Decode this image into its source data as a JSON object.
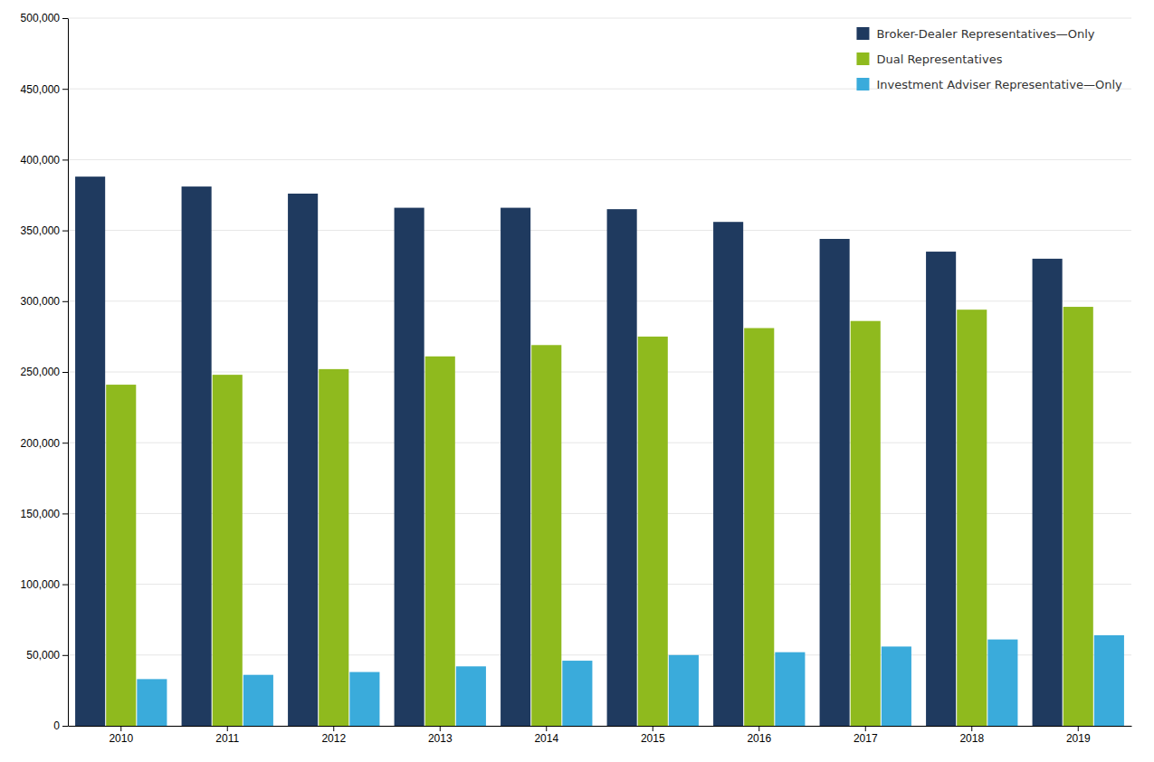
{
  "chart_data": {
    "type": "bar",
    "categories": [
      "2010",
      "2011",
      "2012",
      "2013",
      "2014",
      "2015",
      "2016",
      "2017",
      "2018",
      "2019"
    ],
    "series": [
      {
        "name": "Broker-Dealer Representatives—Only",
        "color": "#1f3a5f",
        "values": [
          388000,
          381000,
          376000,
          366000,
          366000,
          365000,
          356000,
          344000,
          335000,
          330000
        ]
      },
      {
        "name": "Dual Representatives",
        "color": "#8fba1e",
        "values": [
          241000,
          248000,
          252000,
          261000,
          269000,
          275000,
          281000,
          286000,
          294000,
          296000
        ]
      },
      {
        "name": "Investment Adviser Representative—Only",
        "color": "#3aabdb",
        "values": [
          33000,
          36000,
          38000,
          42000,
          46000,
          50000,
          52000,
          56000,
          61000,
          64000
        ]
      }
    ],
    "ylim": [
      0,
      500000
    ],
    "yticks": [
      0,
      {
        "value": 50000,
        "label": "50,000"
      },
      {
        "value": 100000,
        "label": "100,000"
      },
      {
        "value": 150000,
        "label": "150,000"
      },
      {
        "value": 200000,
        "label": "200,000"
      },
      {
        "value": 250000,
        "label": "250,000"
      },
      {
        "value": 300000,
        "label": "300,000"
      },
      {
        "value": 350000,
        "label": "350,000"
      },
      {
        "value": 400000,
        "label": "400,000"
      },
      {
        "value": 450000,
        "label": "450,000"
      },
      {
        "value": 500000,
        "label": "500,000"
      }
    ],
    "grid": true,
    "legend": "upper right"
  }
}
